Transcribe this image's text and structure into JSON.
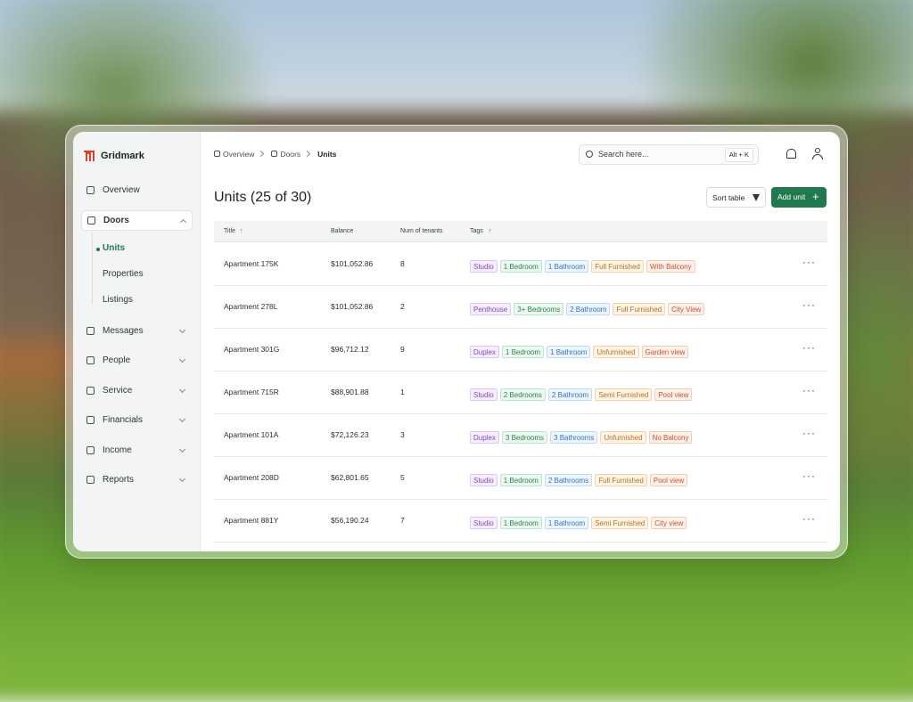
{
  "brand": "Gridmark",
  "sidebar": {
    "items": [
      {
        "label": "Overview"
      },
      {
        "label": "Doors",
        "children": [
          "Units",
          "Properties",
          "Listings"
        ]
      },
      {
        "label": "Messages"
      },
      {
        "label": "People"
      },
      {
        "label": "Service"
      },
      {
        "label": "Financials"
      },
      {
        "label": "Income"
      },
      {
        "label": "Reports"
      }
    ]
  },
  "breadcrumb": [
    "Overview",
    "Doors",
    "Units"
  ],
  "search": {
    "placeholder": "Search here...",
    "shortcut": "Alt + K"
  },
  "page_title": "Units (25 of 30)",
  "actions": {
    "sort": "Sort table",
    "add": "Add unit"
  },
  "table": {
    "columns": [
      "Title",
      "Balance",
      "Num of tenants",
      "Tags"
    ],
    "rows": [
      {
        "title": "Apartment 175K",
        "balance": "$101,052.86",
        "tenants": 8,
        "tags": [
          "Studio",
          "1 Bedroom",
          "1 Bathroom",
          "Full Furnished",
          "With Balcony"
        ]
      },
      {
        "title": "Apartment 278L",
        "balance": "$101,052.86",
        "tenants": 2,
        "tags": [
          "Penthouse",
          "3+ Bedrooms",
          "2 Bathroom",
          "Full Furnished",
          "City View"
        ]
      },
      {
        "title": "Apartment 301G",
        "balance": "$96,712.12",
        "tenants": 9,
        "tags": [
          "Duplex",
          "1 Bedroom",
          "1 Bathroom",
          "Unfurnished",
          "Garden view"
        ]
      },
      {
        "title": "Apartment 715R",
        "balance": "$88,901.88",
        "tenants": 1,
        "tags": [
          "Studio",
          "2 Bedrooms",
          "2 Bathroom",
          "Semi Furnished",
          "Pool view"
        ]
      },
      {
        "title": "Apartment 101A",
        "balance": "$72,126.23",
        "tenants": 3,
        "tags": [
          "Duplex",
          "3 Bedrooms",
          "3 Bathrooms",
          "Unfurnished",
          "No Balcony"
        ]
      },
      {
        "title": "Apartment 208D",
        "balance": "$62,801.65",
        "tenants": 5,
        "tags": [
          "Studio",
          "1 Bedroom",
          "2 Bathrooms",
          "Full Furnished",
          "Pool view"
        ]
      },
      {
        "title": "Apartment 881Y",
        "balance": "$56,190.24",
        "tenants": 7,
        "tags": [
          "Studio",
          "1 Bedroom",
          "1 Bathroom",
          "Semi Furnished",
          "City view"
        ]
      }
    ]
  }
}
